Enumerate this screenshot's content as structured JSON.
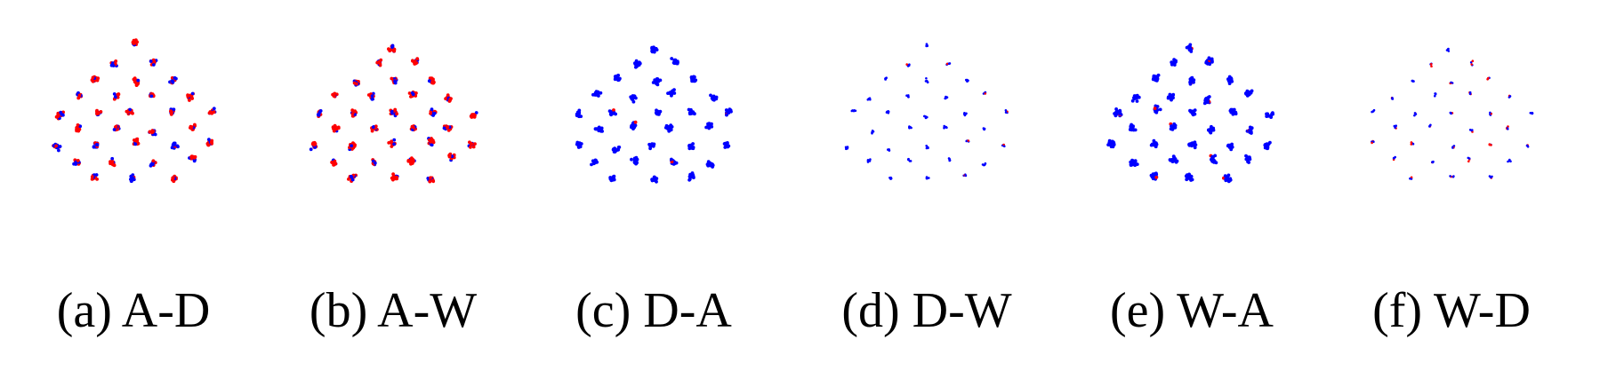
{
  "colors": {
    "source": "#ff0000",
    "target": "#0000ff"
  },
  "chart_data": [
    {
      "type": "scatter",
      "caption": "(a)  A-D",
      "clusters": 31,
      "source_share": 0.65,
      "spread": 1.0
    },
    {
      "type": "scatter",
      "caption": "(b)  A-W",
      "clusters": 31,
      "source_share": 0.7,
      "spread": 1.0
    },
    {
      "type": "scatter",
      "caption": "(c)  D-A",
      "clusters": 31,
      "source_share": 0.02,
      "spread": 1.0
    },
    {
      "type": "scatter",
      "caption": "(d)  D-W",
      "clusters": 31,
      "source_share": 0.05,
      "spread": 0.35
    },
    {
      "type": "scatter",
      "caption": "(e)  W-A",
      "clusters": 31,
      "source_share": 0.03,
      "spread": 1.1
    },
    {
      "type": "scatter",
      "caption": "(f)  W-D",
      "clusters": 31,
      "source_share": 0.35,
      "spread": 0.3
    }
  ]
}
